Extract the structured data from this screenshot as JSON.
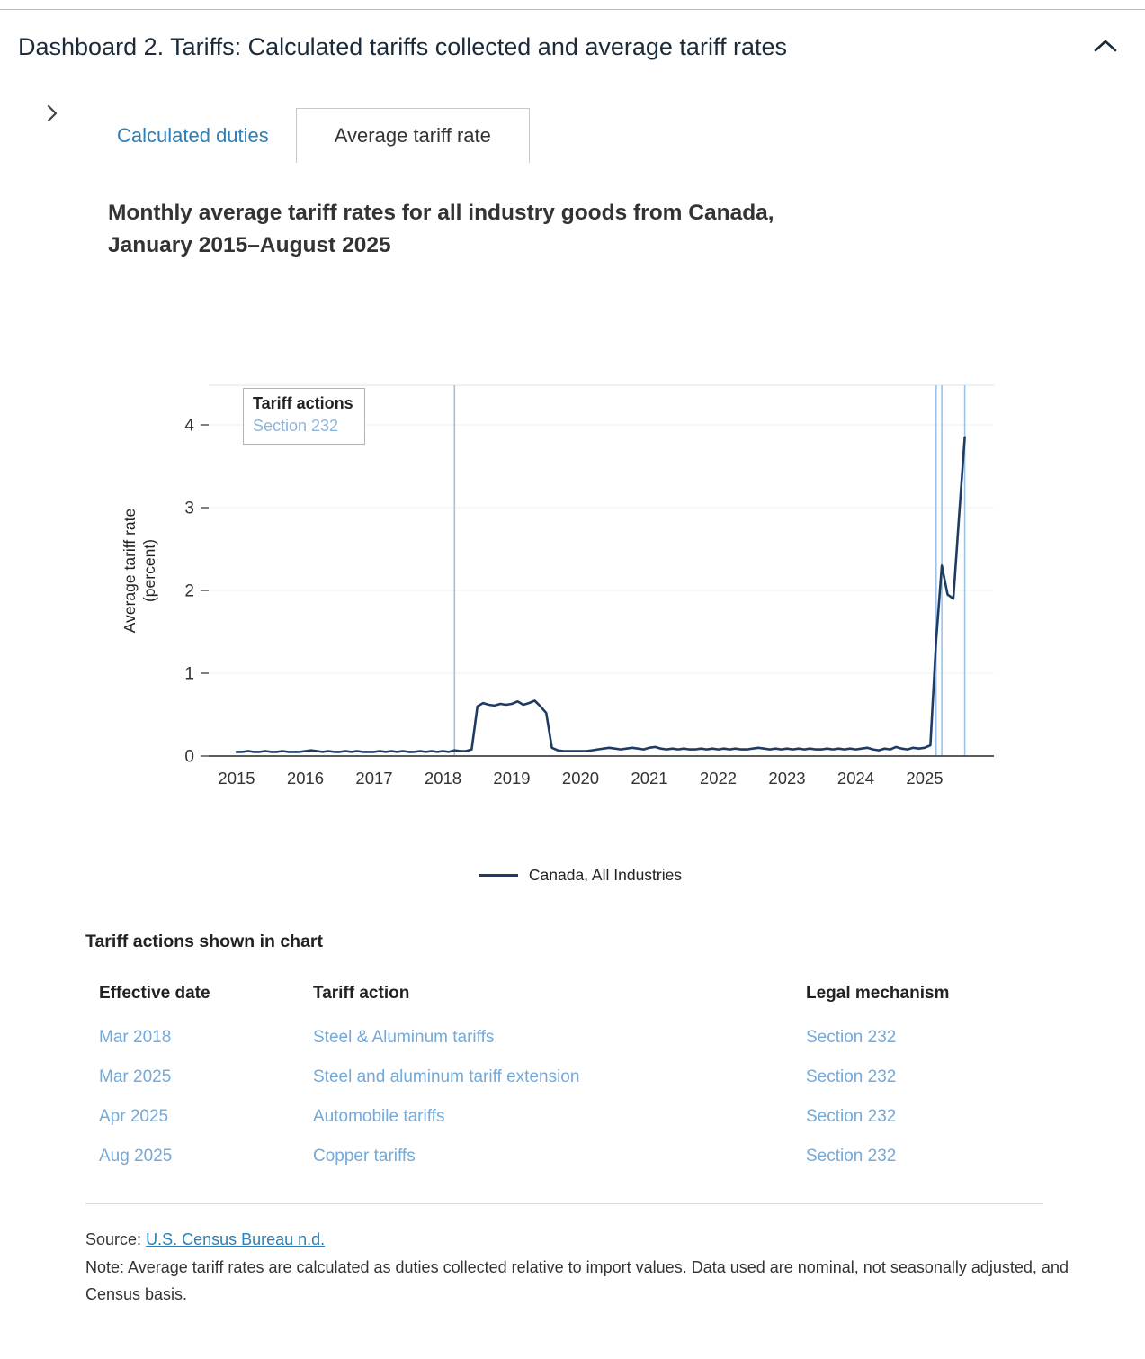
{
  "page": {
    "title": "Dashboard 2. Tariffs: Calculated tariffs collected and average tariff rates"
  },
  "tabs": [
    {
      "label": "Calculated duties",
      "active": false
    },
    {
      "label": "Average tariff rate",
      "active": true
    }
  ],
  "chart": {
    "title_line1": "Monthly average tariff rates for all industry goods from Canada,",
    "title_line2": "January 2015–August 2025",
    "ylabel_line1": "Average tariff rate",
    "ylabel_line2": "(percent)",
    "annotation_box": {
      "title": "Tariff actions",
      "item": "Section 232"
    },
    "legend": "Canada, All Industries"
  },
  "chart_data": {
    "type": "line",
    "title": "Monthly average tariff rates for all industry goods from Canada, January 2015–August 2025",
    "xlabel": "",
    "ylabel": "Average tariff rate (percent)",
    "x_unit": "month",
    "x_start": "2015-01",
    "x_end": "2025-08",
    "xticks": [
      "2015",
      "2016",
      "2017",
      "2018",
      "2019",
      "2020",
      "2021",
      "2022",
      "2023",
      "2024",
      "2025"
    ],
    "yticks": [
      0,
      1,
      2,
      3,
      4
    ],
    "ylim": [
      0,
      4.5
    ],
    "grid": "horizontal-light",
    "legend_position": "bottom-center",
    "series": [
      {
        "name": "Canada, All Industries",
        "color": "#1f3b64",
        "monthly_values": [
          0.05,
          0.05,
          0.06,
          0.05,
          0.05,
          0.06,
          0.05,
          0.05,
          0.06,
          0.05,
          0.05,
          0.05,
          0.06,
          0.07,
          0.06,
          0.05,
          0.06,
          0.05,
          0.05,
          0.06,
          0.05,
          0.06,
          0.05,
          0.05,
          0.05,
          0.06,
          0.05,
          0.06,
          0.05,
          0.06,
          0.05,
          0.05,
          0.06,
          0.05,
          0.06,
          0.05,
          0.06,
          0.05,
          0.07,
          0.06,
          0.06,
          0.08,
          0.6,
          0.64,
          0.62,
          0.61,
          0.63,
          0.62,
          0.63,
          0.66,
          0.62,
          0.64,
          0.67,
          0.6,
          0.52,
          0.1,
          0.07,
          0.06,
          0.06,
          0.06,
          0.06,
          0.06,
          0.07,
          0.08,
          0.09,
          0.1,
          0.09,
          0.08,
          0.09,
          0.1,
          0.09,
          0.08,
          0.1,
          0.11,
          0.09,
          0.08,
          0.09,
          0.08,
          0.09,
          0.08,
          0.08,
          0.09,
          0.08,
          0.09,
          0.08,
          0.09,
          0.08,
          0.09,
          0.08,
          0.08,
          0.09,
          0.1,
          0.09,
          0.08,
          0.09,
          0.08,
          0.09,
          0.08,
          0.09,
          0.08,
          0.09,
          0.08,
          0.08,
          0.09,
          0.08,
          0.09,
          0.08,
          0.09,
          0.08,
          0.09,
          0.1,
          0.08,
          0.07,
          0.09,
          0.08,
          0.11,
          0.09,
          0.08,
          0.1,
          0.09,
          0.1,
          0.13,
          1.4,
          2.3,
          1.95,
          1.9,
          2.9,
          3.85
        ]
      }
    ],
    "event_line_color": "#9dc3e6",
    "event_lines": [
      {
        "date": "Mar 2018",
        "month_index": 38,
        "label": "Steel & Aluminum tariffs"
      },
      {
        "date": "Mar 2025",
        "month_index": 122,
        "label": "Steel and aluminum tariff extension"
      },
      {
        "date": "Apr 2025",
        "month_index": 123,
        "label": "Automobile tariffs"
      },
      {
        "date": "Aug 2025",
        "month_index": 127,
        "label": "Copper tariffs"
      }
    ]
  },
  "table": {
    "title": "Tariff actions shown in chart",
    "columns": [
      "Effective date",
      "Tariff action",
      "Legal mechanism"
    ],
    "rows": [
      {
        "date": "Mar 2018",
        "action": "Steel & Aluminum tariffs",
        "mechanism": "Section 232"
      },
      {
        "date": "Mar 2025",
        "action": "Steel and aluminum tariff extension",
        "mechanism": "Section 232"
      },
      {
        "date": "Apr 2025",
        "action": "Automobile tariffs",
        "mechanism": "Section 232"
      },
      {
        "date": "Aug 2025",
        "action": "Copper tariffs",
        "mechanism": "Section 232"
      }
    ]
  },
  "footer": {
    "source_label": "Source:",
    "source_link": "U.S. Census Bureau n.d.",
    "note": "Note: Average tariff rates are calculated as duties collected relative to import values. Data used are nominal, not seasonally adjusted, and Census basis."
  },
  "colors": {
    "accent_blue": "#2e7fb5",
    "light_link_blue": "#74a9d8",
    "series_navy": "#1f3b64",
    "event_line_blue": "#9dc3e6",
    "heading_dark": "#1c2b39"
  }
}
